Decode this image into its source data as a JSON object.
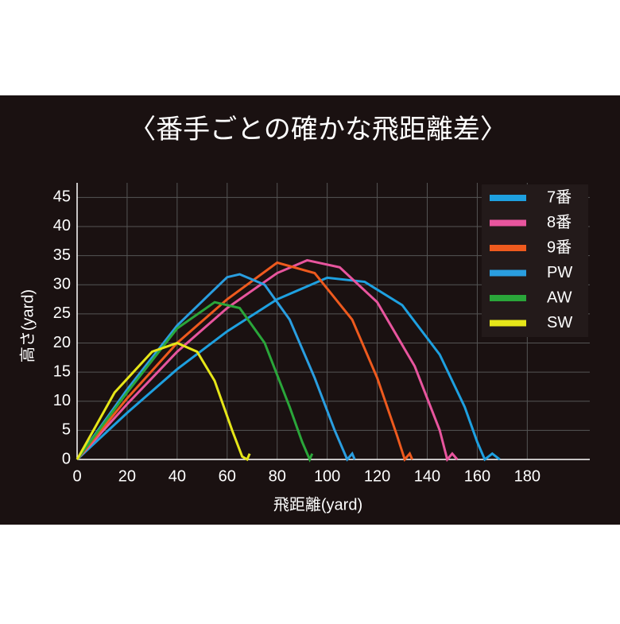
{
  "chart_data": {
    "type": "line",
    "title": "〈番手ごとの確かな飛距離差〉",
    "x_label": "飛距離(yard)",
    "y_label": "高さ(yard)",
    "xlim": [
      0,
      205
    ],
    "ylim": [
      0,
      47.5
    ],
    "xticks": [
      0,
      20,
      40,
      60,
      80,
      100,
      120,
      140,
      160,
      180
    ],
    "yticks": [
      0,
      5,
      10,
      15,
      20,
      25,
      30,
      35,
      40,
      45
    ],
    "grid": true,
    "legend": "upper right",
    "series": [
      {
        "name": "7番",
        "color": "#1ea0e0",
        "x": [
          0,
          20,
          40,
          60,
          80,
          100,
          115,
          130,
          145,
          155,
          160,
          163,
          166,
          169
        ],
        "values": [
          0,
          8,
          15.5,
          22,
          27.5,
          31.2,
          30.5,
          26.5,
          18,
          9,
          3,
          0,
          1,
          0
        ]
      },
      {
        "name": "8番",
        "color": "#e8559e",
        "x": [
          0,
          20,
          40,
          60,
          80,
          92,
          105,
          120,
          135,
          145,
          148,
          150,
          152
        ],
        "values": [
          0,
          9.5,
          18.5,
          26,
          32,
          34.2,
          33,
          27,
          16,
          5,
          0,
          1,
          0
        ]
      },
      {
        "name": "9番",
        "color": "#ee5a1e",
        "x": [
          0,
          20,
          40,
          60,
          80,
          95,
          110,
          120,
          128,
          131,
          133,
          134
        ],
        "values": [
          0,
          10.5,
          20,
          27.5,
          33.8,
          32,
          24,
          14,
          4,
          0,
          1,
          0
        ]
      },
      {
        "name": "PW",
        "color": "#2a9ee0",
        "x": [
          0,
          20,
          40,
          60,
          65,
          75,
          85,
          95,
          103,
          108,
          110,
          111
        ],
        "values": [
          0,
          12,
          23,
          31.3,
          31.8,
          30,
          24,
          14,
          5,
          0,
          1,
          0
        ]
      },
      {
        "name": "AW",
        "color": "#2aa63a",
        "x": [
          0,
          20,
          40,
          55,
          65,
          75,
          85,
          90,
          93,
          94
        ],
        "values": [
          0,
          11.5,
          22.5,
          27,
          26,
          20,
          9,
          3,
          0,
          1
        ]
      },
      {
        "name": "SW",
        "color": "#e6e619",
        "x": [
          0,
          15,
          30,
          40,
          48,
          55,
          62,
          66,
          68,
          69
        ],
        "values": [
          0,
          11.5,
          18.5,
          20,
          18.5,
          13.5,
          5,
          0.5,
          0,
          1
        ]
      }
    ]
  }
}
